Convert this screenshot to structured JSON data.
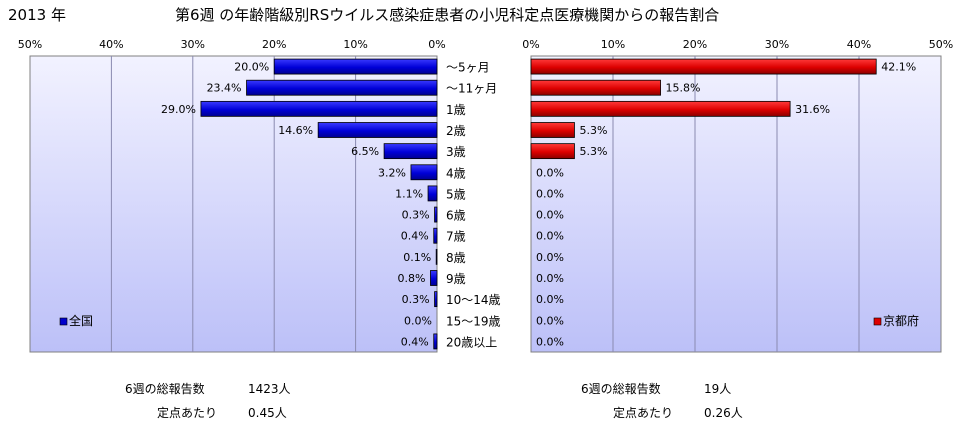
{
  "header": {
    "year": "2013 年",
    "title": "第6週 の年齢階級別RSウイルス感染症患者の小児科定点医療機関からの報告割合"
  },
  "categories": [
    "～5ヶ月",
    "～11ヶ月",
    "1歳",
    "2歳",
    "3歳",
    "4歳",
    "5歳",
    "6歳",
    "7歳",
    "8歳",
    "9歳",
    "10～14歳",
    "15～19歳",
    "20歳以上"
  ],
  "chart_data": [
    {
      "type": "bar",
      "orientation": "horizontal",
      "direction": "right-to-left",
      "legend": "全国",
      "legend_position": "bottom-left",
      "xlim": [
        0,
        50
      ],
      "ticks": [
        "50%",
        "40%",
        "30%",
        "20%",
        "10%",
        "0%"
      ],
      "grid": true,
      "color": "#0000cc",
      "values": [
        20.0,
        23.4,
        29.0,
        14.6,
        6.5,
        3.2,
        1.1,
        0.3,
        0.4,
        0.1,
        0.8,
        0.3,
        0.0,
        0.4
      ],
      "labels": [
        "20.0%",
        "23.4%",
        "29.0%",
        "14.6%",
        "6.5%",
        "3.2%",
        "1.1%",
        "0.3%",
        "0.4%",
        "0.1%",
        "0.8%",
        "0.3%",
        "0.0%",
        "0.4%"
      ]
    },
    {
      "type": "bar",
      "orientation": "horizontal",
      "direction": "left-to-right",
      "legend": "京都府",
      "legend_position": "bottom-right",
      "xlim": [
        0,
        50
      ],
      "ticks": [
        "0%",
        "10%",
        "20%",
        "30%",
        "40%",
        "50%"
      ],
      "grid": true,
      "color": "#dd0000",
      "values": [
        42.1,
        15.8,
        31.6,
        5.3,
        5.3,
        0,
        0,
        0,
        0,
        0,
        0,
        0,
        0,
        0
      ],
      "labels": [
        "42.1%",
        "15.8%",
        "31.6%",
        "5.3%",
        "5.3%",
        "0.0%",
        "0.0%",
        "0.0%",
        "0.0%",
        "0.0%",
        "0.0%",
        "0.0%",
        "0.0%",
        "0.0%"
      ]
    }
  ],
  "footer": {
    "left": {
      "reports_label": "6週の総報告数",
      "reports_value": "1423人",
      "per_site_label": "定点あたり",
      "per_site_value": "0.45人"
    },
    "right": {
      "reports_label": "6週の総報告数",
      "reports_value": "19人",
      "per_site_label": "定点あたり",
      "per_site_value": "0.26人"
    }
  }
}
